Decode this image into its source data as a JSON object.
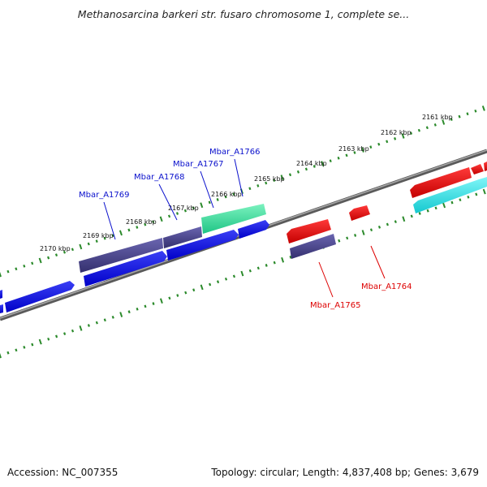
{
  "title": "Methanosarcina barkeri str. fusaro chromosome 1, complete se...",
  "footer": {
    "accession": "Accession: NC_007355",
    "summary": "Topology: circular; Length: 4,837,408 bp; Genes: 3,679"
  },
  "colors": {
    "backbone": "#7a7a7a",
    "tick": "#2b8a2b",
    "forward_cds": "#0a10e6",
    "forward_purple": "#4a4590",
    "forward_green": "#3de59b",
    "reverse_cds": "#ef0b0b",
    "reverse_cyan": "#2ee6ea",
    "reverse_purple": "#4a4590",
    "forward_label": "#0a10cc",
    "reverse_label": "#dd0000"
  },
  "ticks": [
    {
      "label": "2161 kbp",
      "kbp": 2161
    },
    {
      "label": "2162 kbp",
      "kbp": 2162
    },
    {
      "label": "2163 kbp",
      "kbp": 2163
    },
    {
      "label": "2164 kbp",
      "kbp": 2164
    },
    {
      "label": "2165 kbp",
      "kbp": 2165
    },
    {
      "label": "2166 kbp",
      "kbp": 2166
    },
    {
      "label": "2167 kbp",
      "kbp": 2167
    },
    {
      "label": "2168 kbp",
      "kbp": 2168
    },
    {
      "label": "2169 kbp",
      "kbp": 2169
    },
    {
      "label": "2170 kbp",
      "kbp": 2170
    }
  ],
  "gene_labels": [
    {
      "id": "Mbar_A1766",
      "strand": "forward"
    },
    {
      "id": "Mbar_A1767",
      "strand": "forward"
    },
    {
      "id": "Mbar_A1768",
      "strand": "forward"
    },
    {
      "id": "Mbar_A1769",
      "strand": "forward"
    },
    {
      "id": "Mbar_A1765",
      "strand": "reverse"
    },
    {
      "id": "Mbar_A1764",
      "strand": "reverse"
    }
  ]
}
